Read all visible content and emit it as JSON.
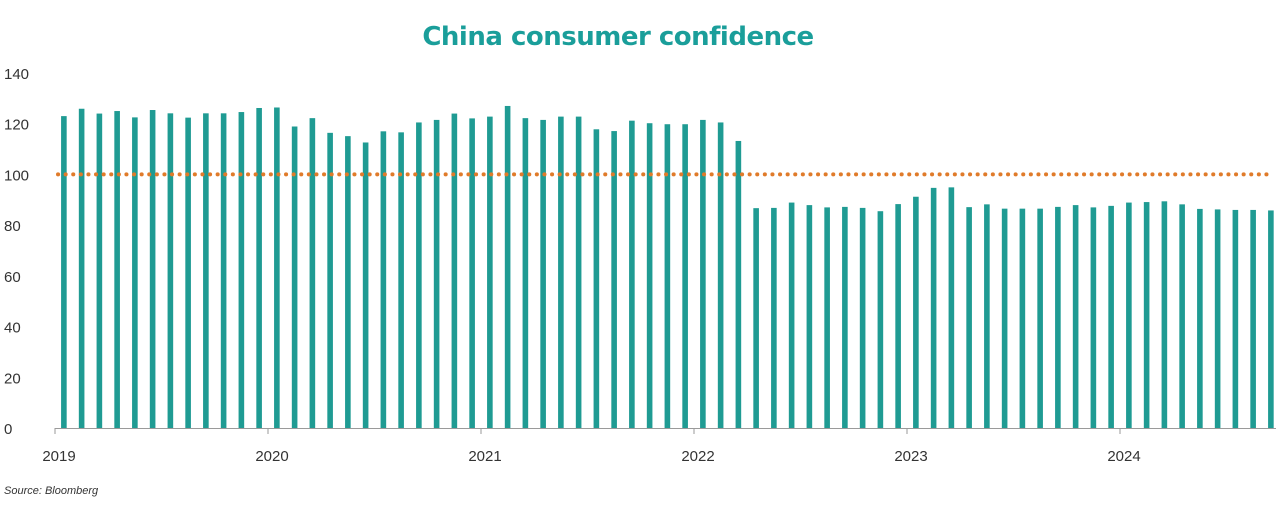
{
  "chart_data": {
    "type": "bar",
    "title": "China consumer confidence",
    "source": "Source: Bloomberg",
    "ylim": [
      0,
      140
    ],
    "yticks": [
      0,
      20,
      40,
      60,
      80,
      100,
      120,
      140
    ],
    "xtick_labels": [
      "2019",
      "2020",
      "2021",
      "2022",
      "2023",
      "2024"
    ],
    "xtick_months": [
      0,
      12,
      24,
      36,
      48,
      60
    ],
    "x_start": "2019-01",
    "reference_line": {
      "value": 100,
      "style": "dotted"
    },
    "grid": false,
    "colors": {
      "bars": "#1f9b93",
      "reference": "#e07b2a",
      "title": "#1a9e9a"
    },
    "months": [
      "2019-01",
      "2019-02",
      "2019-03",
      "2019-04",
      "2019-05",
      "2019-06",
      "2019-07",
      "2019-08",
      "2019-09",
      "2019-10",
      "2019-11",
      "2019-12",
      "2020-01",
      "2020-02",
      "2020-03",
      "2020-04",
      "2020-05",
      "2020-06",
      "2020-07",
      "2020-08",
      "2020-09",
      "2020-10",
      "2020-11",
      "2020-12",
      "2021-01",
      "2021-02",
      "2021-03",
      "2021-04",
      "2021-05",
      "2021-06",
      "2021-07",
      "2021-08",
      "2021-09",
      "2021-10",
      "2021-11",
      "2021-12",
      "2022-01",
      "2022-02",
      "2022-03",
      "2022-04",
      "2022-05",
      "2022-06",
      "2022-07",
      "2022-08",
      "2022-09",
      "2022-10",
      "2022-11",
      "2022-12",
      "2023-01",
      "2023-02",
      "2023-03",
      "2023-04",
      "2023-05",
      "2023-06",
      "2023-07",
      "2023-08",
      "2023-09",
      "2023-10",
      "2023-11",
      "2023-12",
      "2024-01",
      "2024-02",
      "2024-03",
      "2024-04",
      "2024-05",
      "2024-06",
      "2024-07",
      "2024-08",
      "2024-09"
    ],
    "values": [
      123.0,
      125.9,
      124.0,
      125.0,
      122.5,
      125.4,
      124.1,
      122.4,
      124.1,
      124.1,
      124.6,
      126.2,
      126.4,
      118.9,
      122.2,
      116.4,
      115.1,
      112.6,
      117.0,
      116.6,
      120.5,
      121.5,
      124.0,
      122.1,
      122.8,
      127.0,
      122.2,
      121.5,
      122.8,
      122.8,
      117.8,
      117.1,
      121.2,
      120.2,
      119.8,
      119.8,
      121.5,
      120.5,
      113.2,
      86.7,
      86.8,
      88.9,
      87.9,
      87.0,
      87.2,
      86.8,
      85.5,
      88.3,
      91.2,
      94.7,
      94.9,
      87.1,
      88.2,
      86.5,
      86.5,
      86.5,
      87.2,
      87.9,
      87.0,
      87.6,
      88.9,
      89.1,
      89.4,
      88.2,
      86.4,
      86.2,
      86.0,
      86.0,
      85.8
    ]
  }
}
